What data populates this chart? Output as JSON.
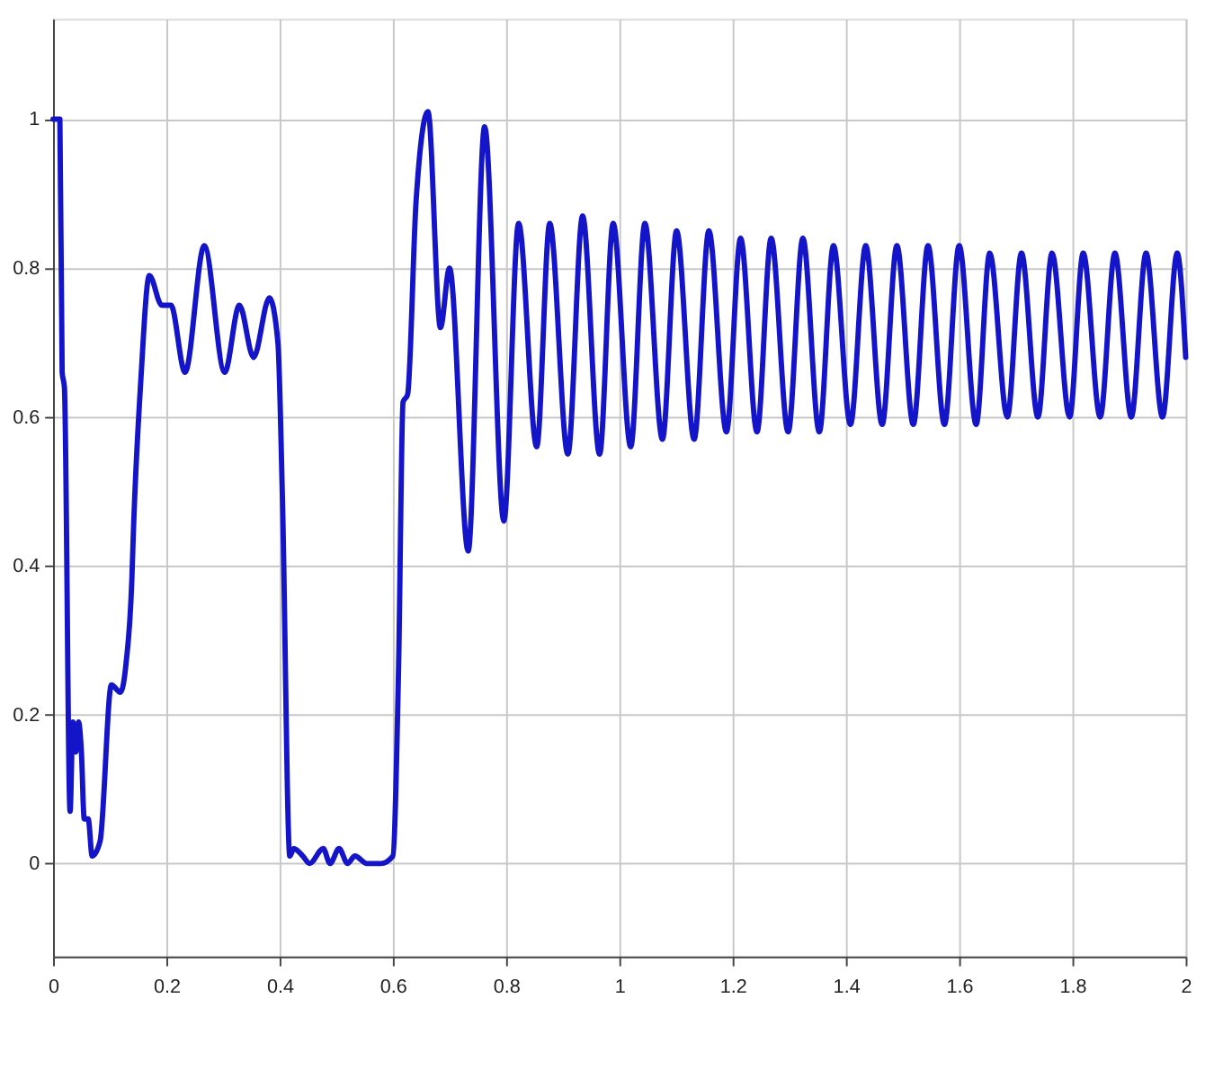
{
  "chart_data": {
    "type": "line",
    "x": [
      0,
      0.012,
      0.016,
      0.02,
      0.03,
      0.035,
      0.04,
      0.045,
      0.05,
      0.055,
      0.062,
      0.069,
      0.083,
      0.103,
      0.119,
      0.129,
      0.139,
      0.142,
      0.155,
      0.17,
      0.192,
      0.208,
      0.233,
      0.267,
      0.303,
      0.329,
      0.354,
      0.382,
      0.397,
      0.405,
      0.418,
      0.425,
      0.441,
      0.453,
      0.477,
      0.489,
      0.505,
      0.52,
      0.533,
      0.554,
      0.579,
      0.6,
      0.61,
      0.618,
      0.626,
      0.641,
      0.662,
      0.684,
      0.7,
      0.733,
      0.762,
      0.796,
      0.822,
      0.854,
      0.877,
      0.909,
      0.935,
      0.965,
      0.989,
      1.02,
      1.045,
      1.076,
      1.101,
      1.132,
      1.158,
      1.189,
      1.214,
      1.243,
      1.268,
      1.298,
      1.324,
      1.353,
      1.378,
      1.408,
      1.435,
      1.464,
      1.49,
      1.519,
      1.545,
      1.574,
      1.6,
      1.63,
      1.654,
      1.685,
      1.71,
      1.739,
      1.764,
      1.795,
      1.819,
      1.849,
      1.875,
      1.904,
      1.93,
      1.959,
      1.985,
      2.0
    ],
    "series": [
      {
        "color": "#1414c8",
        "values": [
          1.0,
          1.0,
          0.66,
          0.64,
          0.07,
          0.19,
          0.15,
          0.19,
          0.15,
          0.06,
          0.06,
          0.01,
          0.03,
          0.24,
          0.23,
          0.27,
          0.38,
          0.45,
          0.65,
          0.79,
          0.75,
          0.75,
          0.66,
          0.83,
          0.66,
          0.75,
          0.68,
          0.76,
          0.7,
          0.49,
          0.01,
          0.02,
          0.01,
          0.0,
          0.02,
          0.0,
          0.02,
          0.0,
          0.01,
          0.0,
          0.0,
          0.01,
          0.26,
          0.62,
          0.63,
          0.89,
          1.01,
          0.72,
          0.8,
          0.42,
          0.99,
          0.46,
          0.86,
          0.56,
          0.86,
          0.55,
          0.87,
          0.55,
          0.86,
          0.56,
          0.86,
          0.57,
          0.85,
          0.57,
          0.85,
          0.58,
          0.84,
          0.58,
          0.84,
          0.58,
          0.84,
          0.58,
          0.83,
          0.59,
          0.83,
          0.59,
          0.83,
          0.59,
          0.83,
          0.59,
          0.83,
          0.59,
          0.82,
          0.6,
          0.82,
          0.6,
          0.82,
          0.6,
          0.82,
          0.6,
          0.82,
          0.6,
          0.82,
          0.6,
          0.82,
          0.68
        ]
      }
    ],
    "xlim": [
      0,
      2
    ],
    "xticks": [
      0,
      0.2,
      0.4,
      0.6,
      0.8,
      1,
      1.2,
      1.4,
      1.6,
      1.8,
      2
    ],
    "ylim": [
      -0.125,
      1.135
    ],
    "yticks": [
      0,
      0.2,
      0.4,
      0.6,
      0.8,
      1
    ],
    "grid": true,
    "marker": "none",
    "line_style": "solid"
  }
}
